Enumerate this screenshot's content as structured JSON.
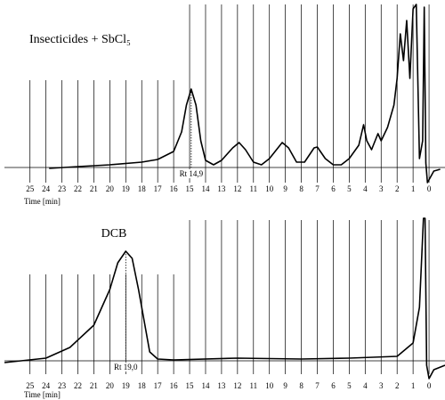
{
  "chart_data": [
    {
      "type": "line",
      "title": "Insecticides + SbCl₅",
      "x_label": "Time [min]",
      "xlim": [
        26.6,
        -1
      ],
      "ylim": [
        -20,
        185
      ],
      "xticks": [
        25,
        24,
        23,
        22,
        21,
        20,
        19,
        18,
        17,
        16,
        15,
        14,
        13,
        12,
        11,
        10,
        9,
        8,
        7,
        6,
        5,
        4,
        3,
        2,
        1,
        0
      ],
      "grid": true,
      "color": "#000000",
      "x": [
        23.8,
        22,
        20,
        18,
        17,
        16,
        15.5,
        15.2,
        14.9,
        14.6,
        14.3,
        14,
        13.5,
        13,
        12.3,
        11.9,
        11.5,
        11,
        10.5,
        10,
        9.2,
        8.8,
        8.3,
        7.8,
        7.2,
        7,
        6.5,
        6,
        5.5,
        5,
        4.4,
        4.1,
        3.9,
        3.6,
        3.2,
        3,
        2.6,
        2.2,
        2,
        1.8,
        1.6,
        1.4,
        1.2,
        1,
        0.8,
        0.6,
        0.4,
        0.3,
        0.2,
        0.1,
        -0.3,
        -0.7
      ],
      "values": [
        -1,
        1,
        3,
        6,
        9,
        18,
        40,
        70,
        88,
        70,
        30,
        8,
        3,
        8,
        22,
        28,
        20,
        6,
        3,
        10,
        28,
        22,
        6,
        6,
        22,
        23,
        10,
        3,
        3,
        10,
        25,
        48,
        30,
        20,
        38,
        30,
        45,
        70,
        100,
        150,
        120,
        165,
        100,
        178,
        183,
        10,
        30,
        180,
        5,
        -17,
        -4,
        -2
      ],
      "annotations": [
        {
          "text": "Rt 14,9",
          "x": 14.9,
          "y": 88
        }
      ]
    },
    {
      "type": "line",
      "title": "DCB",
      "x_label": "Time [min]",
      "xlim": [
        26.6,
        -1
      ],
      "ylim": [
        -20,
        185
      ],
      "xticks": [
        25,
        24,
        23,
        22,
        21,
        20,
        19,
        18,
        17,
        16,
        15,
        14,
        13,
        12,
        11,
        10,
        9,
        8,
        7,
        6,
        5,
        4,
        3,
        2,
        1,
        0
      ],
      "grid": true,
      "color": "#000000",
      "x": [
        26.6,
        24,
        22.5,
        21,
        20,
        19.5,
        19,
        18.6,
        18.2,
        17.8,
        17.5,
        17,
        16,
        12,
        8,
        5,
        2,
        1,
        0.6,
        0.5,
        0.35,
        0.25,
        0.15,
        0,
        -0.3,
        -1
      ],
      "values": [
        -2,
        3,
        15,
        40,
        80,
        110,
        123,
        115,
        80,
        40,
        10,
        2,
        1,
        3,
        2,
        3,
        5,
        20,
        60,
        100,
        160,
        160,
        -5,
        -20,
        -10,
        -5
      ],
      "annotations": [
        {
          "text": "Rt 19,0",
          "x": 19,
          "y": 123
        }
      ]
    }
  ]
}
